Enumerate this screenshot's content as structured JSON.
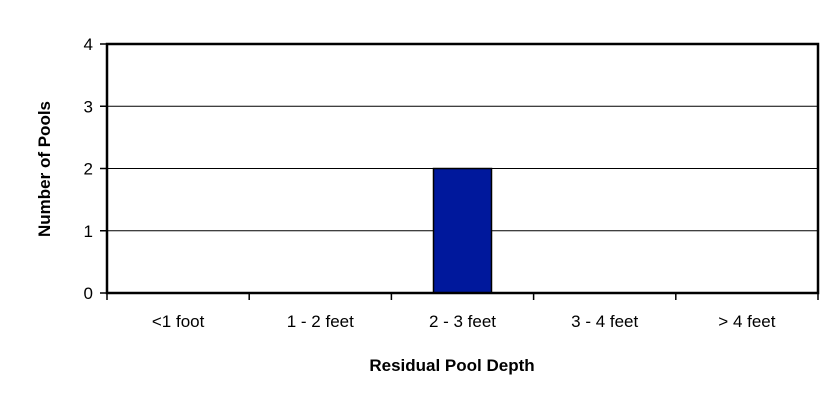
{
  "chart_data": {
    "type": "bar",
    "title": "",
    "xlabel": "Residual Pool Depth",
    "ylabel": "Number of Pools",
    "categories": [
      "<1 foot",
      "1 - 2 feet",
      "2 - 3 feet",
      "3 - 4 feet",
      "> 4 feet"
    ],
    "values": [
      0,
      0,
      2,
      0,
      0
    ],
    "ylim": [
      0,
      4
    ],
    "yticks": [
      "0",
      "1",
      "2",
      "3",
      "4"
    ],
    "grid": true,
    "bar_color": "#00189c",
    "legend": "none"
  }
}
